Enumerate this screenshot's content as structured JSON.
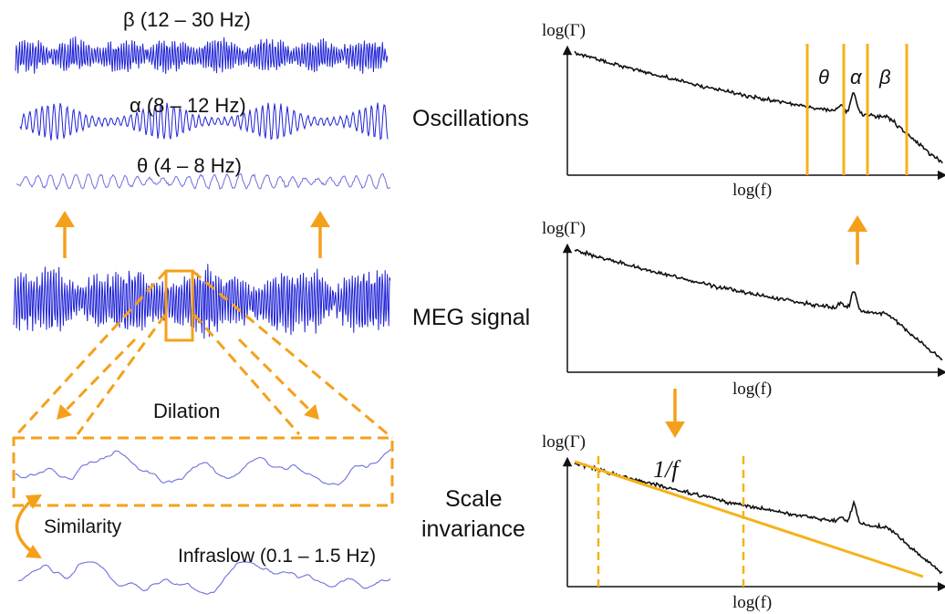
{
  "left_panel": {
    "beta_label": "β  (12 – 30 Hz)",
    "alpha_label": "α (8 – 12 Hz)",
    "theta_label": "θ (4 – 8 Hz)",
    "dilation_label": "Dilation",
    "similarity_label": "Similarity",
    "infraslow_label": "Infraslow (0.1 – 1.5 Hz)"
  },
  "middle_labels": {
    "oscillations": "Oscillations",
    "meg_signal": "MEG signal",
    "scale_line1": "Scale",
    "scale_line2": "invariance"
  },
  "spectra": {
    "y_label": "log(Γ)",
    "x_label": "log(f)",
    "band_theta": "θ",
    "band_alpha": "α",
    "band_beta": "β",
    "power_law": "1/f"
  },
  "colors": {
    "signal": "#1f22d6",
    "signal_light": "#6d6fe0",
    "accent": "#f5a01a",
    "spectrum": "#111111"
  }
}
